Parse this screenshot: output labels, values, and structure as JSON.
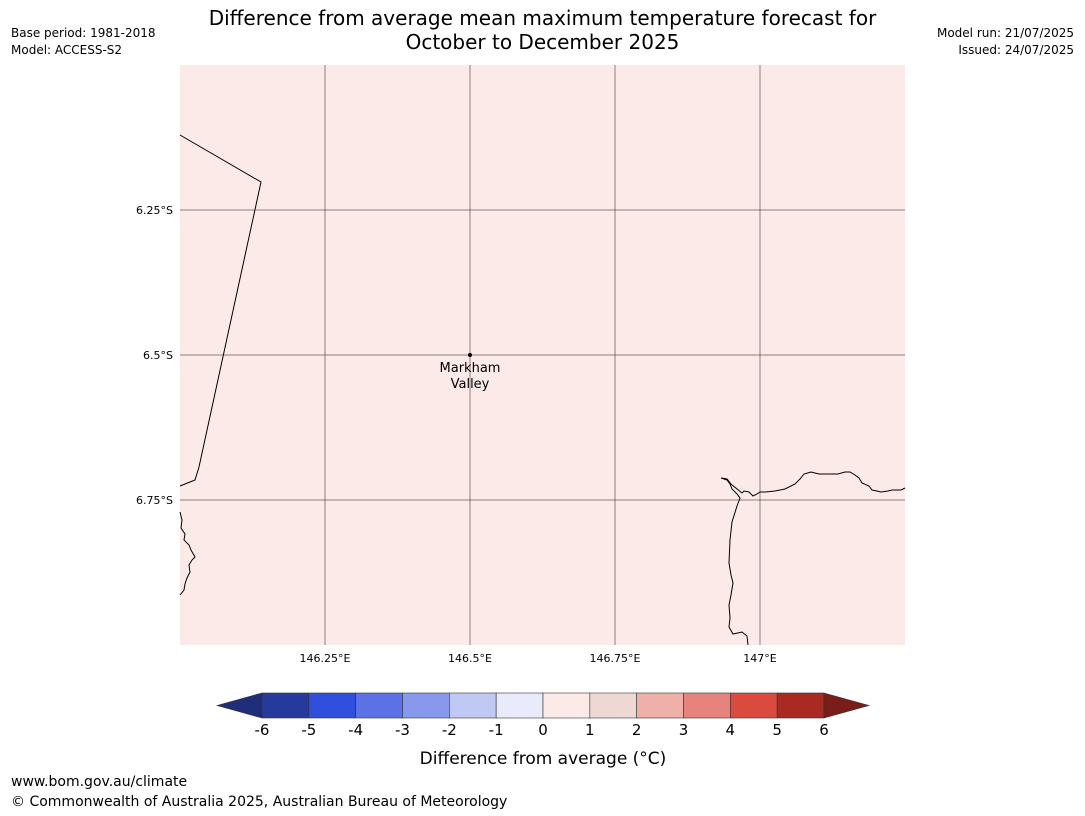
{
  "header": {
    "title_line1": "Difference from average mean maximum temperature forecast for",
    "title_line2": "October to December 2025",
    "base_period": "Base period: 1981-2018",
    "model": "Model: ACCESS-S2",
    "model_run": "Model run: 21/07/2025",
    "issued": "Issued: 24/07/2025"
  },
  "map": {
    "background_color": "#fbeae8",
    "lon_range": [
      146.0,
      147.25
    ],
    "lat_range": [
      -6.0,
      -7.0
    ],
    "lat_ticks": [
      {
        "value": -6.25,
        "label": "6.25°S"
      },
      {
        "value": -6.5,
        "label": "6.5°S"
      },
      {
        "value": -6.75,
        "label": "6.75°S"
      }
    ],
    "lon_ticks": [
      {
        "value": 146.25,
        "label": "146.25°E"
      },
      {
        "value": 146.5,
        "label": "146.5°E"
      },
      {
        "value": 146.75,
        "label": "146.75°E"
      },
      {
        "value": 147.0,
        "label": "147°E"
      }
    ],
    "location": {
      "name_line1": "Markham",
      "name_line2": "Valley",
      "lon": 146.5,
      "lat": -6.5
    }
  },
  "colorbar": {
    "label": "Difference from average ($^\\circ$C)",
    "label_display": "Difference from average (°C)",
    "ticks": [
      "-6",
      "-5",
      "-4",
      "-3",
      "-2",
      "-1",
      "0",
      "1",
      "2",
      "3",
      "4",
      "5",
      "6"
    ],
    "colors": [
      "#263a9d",
      "#2f4fdc",
      "#5b72e6",
      "#8898ec",
      "#c0c8f4",
      "#e9eafc",
      "#fbeae8",
      "#eed8d4",
      "#eeb0a8",
      "#e6837b",
      "#db4a3f",
      "#a92a22"
    ],
    "under_color": "#1f2d7a",
    "over_color": "#7a1d19"
  },
  "footer": {
    "url": "www.bom.gov.au/climate",
    "copyright": "© Commonwealth of Australia 2025, Australian Bureau of Meteorology"
  }
}
